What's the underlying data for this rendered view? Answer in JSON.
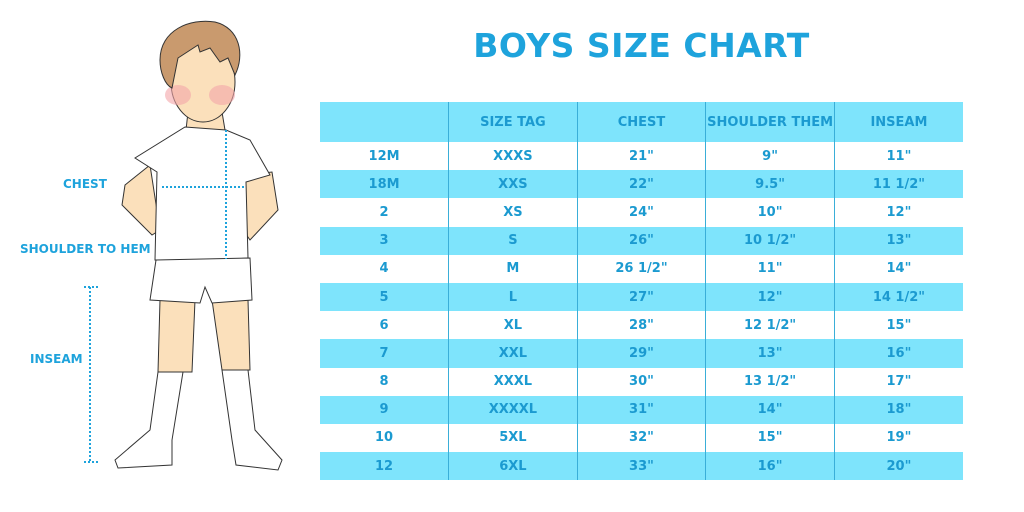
{
  "title": "BOYS SIZE CHART",
  "figure_labels": {
    "chest": "CHEST",
    "shoulder_to_hem": "SHOULDER TO HEM",
    "inseam": "INSEAM"
  },
  "table": {
    "headers": [
      "",
      "SIZE TAG",
      "CHEST",
      "SHOULDER THEM",
      "INSEAM"
    ],
    "rows": [
      [
        "12M",
        "XXXS",
        "21\"",
        "9\"",
        "11\""
      ],
      [
        "18M",
        "XXS",
        "22\"",
        "9.5\"",
        "11 1/2\""
      ],
      [
        "2",
        "XS",
        "24\"",
        "10\"",
        "12\""
      ],
      [
        "3",
        "S",
        "26\"",
        "10 1/2\"",
        "13\""
      ],
      [
        "4",
        "M",
        "26 1/2\"",
        "11\"",
        "14\""
      ],
      [
        "5",
        "L",
        "27\"",
        "12\"",
        "14 1/2\""
      ],
      [
        "6",
        "XL",
        "28\"",
        "12 1/2\"",
        "15\""
      ],
      [
        "7",
        "XXL",
        "29\"",
        "13\"",
        "16\""
      ],
      [
        "8",
        "XXXL",
        "30\"",
        "13 1/2\"",
        "17\""
      ],
      [
        "9",
        "XXXXL",
        "31\"",
        "14\"",
        "18\""
      ],
      [
        "10",
        "5XL",
        "32\"",
        "15\"",
        "19\""
      ],
      [
        "12",
        "6XL",
        "33\"",
        "16\"",
        "20\""
      ]
    ]
  },
  "colors": {
    "accent": "#1ea3dc",
    "row_highlight": "#7ee4fc"
  }
}
